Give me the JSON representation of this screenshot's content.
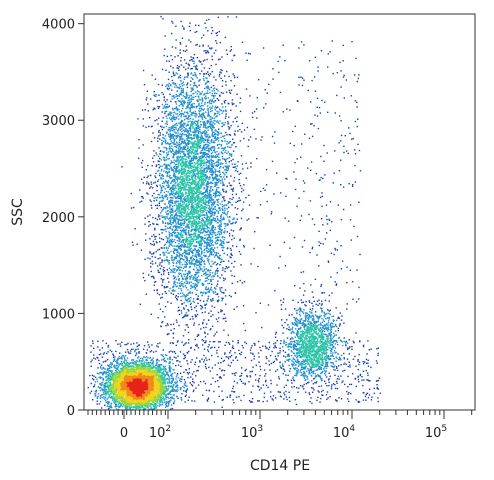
{
  "chart_data": {
    "type": "scatter",
    "subtype": "flow-cytometry-density-dot-plot",
    "xlabel": "CD14 PE",
    "ylabel": "SSC",
    "x_scale": "biexponential",
    "x_tick_labels": [
      {
        "value": 0,
        "base": "0",
        "exp": ""
      },
      {
        "value": 100,
        "base": "10",
        "exp": "2"
      },
      {
        "value": 1000,
        "base": "10",
        "exp": "3"
      },
      {
        "value": 10000,
        "base": "10",
        "exp": "4"
      },
      {
        "value": 100000,
        "base": "10",
        "exp": "5"
      }
    ],
    "y_ticks": [
      0,
      1000,
      2000,
      3000,
      4000
    ],
    "ylim": [
      0,
      4100
    ],
    "grid": false,
    "density_colors": [
      "#1a3fb0",
      "#1f8fd0",
      "#2cc4a8",
      "#9ad63a",
      "#f2d31c",
      "#f08a1c",
      "#e8231c"
    ],
    "populations": [
      {
        "id": "lymphocytes",
        "cd14_center": 30,
        "ssc_center": 250,
        "ssc_spread": 90,
        "relative_density": 1.0
      },
      {
        "id": "granulocytes",
        "cd14_center": 180,
        "ssc_center": 2300,
        "ssc_spread": 650,
        "relative_density": 0.55
      },
      {
        "id": "monocytes",
        "cd14_center": 3700,
        "ssc_center": 700,
        "ssc_spread": 170,
        "relative_density": 0.35
      }
    ]
  }
}
